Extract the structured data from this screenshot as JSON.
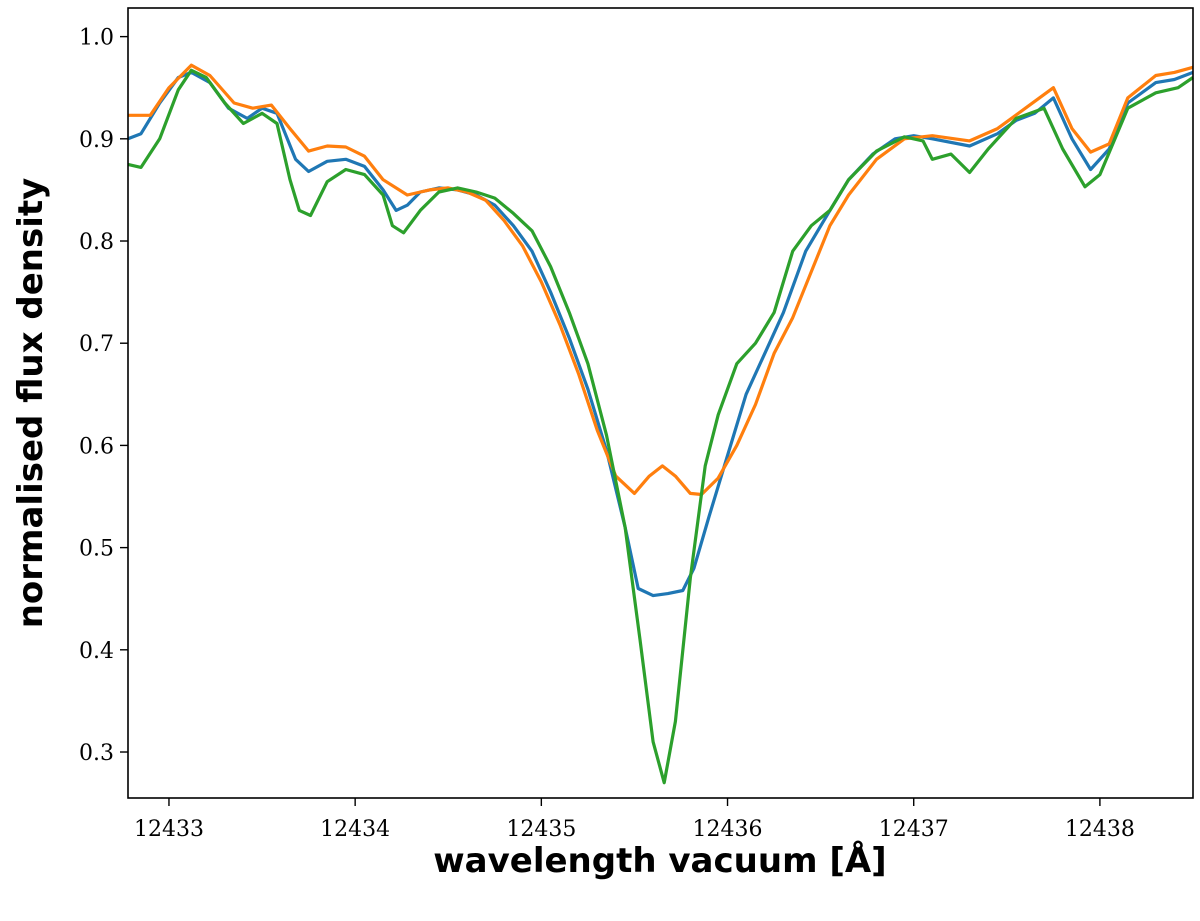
{
  "chart_data": {
    "type": "line",
    "title": "",
    "xlabel": "wavelength vacuum [Å]",
    "ylabel": "normalised flux density",
    "xlim": [
      12432.78,
      12438.5
    ],
    "ylim": [
      0.255,
      1.028
    ],
    "xticks": [
      12433,
      12434,
      12435,
      12436,
      12437,
      12438
    ],
    "yticks": [
      0.3,
      0.4,
      0.5,
      0.6,
      0.7,
      0.8,
      0.9,
      1.0
    ],
    "ytick_labels": [
      "0.3",
      "0.4",
      "0.5",
      "0.6",
      "0.7",
      "0.8",
      "0.9",
      "1.0"
    ],
    "grid": false,
    "legend": "none",
    "series": [
      {
        "color": "#1f77b4",
        "points": [
          [
            12432.78,
            0.9
          ],
          [
            12432.85,
            0.905
          ],
          [
            12432.95,
            0.935
          ],
          [
            12433.05,
            0.96
          ],
          [
            12433.12,
            0.965
          ],
          [
            12433.22,
            0.955
          ],
          [
            12433.32,
            0.93
          ],
          [
            12433.42,
            0.92
          ],
          [
            12433.5,
            0.93
          ],
          [
            12433.58,
            0.925
          ],
          [
            12433.68,
            0.88
          ],
          [
            12433.75,
            0.868
          ],
          [
            12433.85,
            0.878
          ],
          [
            12433.95,
            0.88
          ],
          [
            12434.05,
            0.873
          ],
          [
            12434.15,
            0.85
          ],
          [
            12434.22,
            0.83
          ],
          [
            12434.28,
            0.835
          ],
          [
            12434.35,
            0.848
          ],
          [
            12434.45,
            0.852
          ],
          [
            12434.55,
            0.85
          ],
          [
            12434.65,
            0.845
          ],
          [
            12434.75,
            0.835
          ],
          [
            12434.85,
            0.815
          ],
          [
            12434.95,
            0.79
          ],
          [
            12435.05,
            0.75
          ],
          [
            12435.15,
            0.705
          ],
          [
            12435.25,
            0.655
          ],
          [
            12435.35,
            0.595
          ],
          [
            12435.45,
            0.52
          ],
          [
            12435.52,
            0.46
          ],
          [
            12435.6,
            0.453
          ],
          [
            12435.68,
            0.455
          ],
          [
            12435.76,
            0.458
          ],
          [
            12435.82,
            0.48
          ],
          [
            12435.9,
            0.53
          ],
          [
            12436.0,
            0.59
          ],
          [
            12436.1,
            0.65
          ],
          [
            12436.2,
            0.69
          ],
          [
            12436.3,
            0.73
          ],
          [
            12436.42,
            0.79
          ],
          [
            12436.55,
            0.83
          ],
          [
            12436.65,
            0.86
          ],
          [
            12436.78,
            0.885
          ],
          [
            12436.9,
            0.9
          ],
          [
            12437.0,
            0.903
          ],
          [
            12437.1,
            0.9
          ],
          [
            12437.3,
            0.893
          ],
          [
            12437.45,
            0.905
          ],
          [
            12437.55,
            0.918
          ],
          [
            12437.65,
            0.925
          ],
          [
            12437.75,
            0.94
          ],
          [
            12437.85,
            0.9
          ],
          [
            12437.95,
            0.87
          ],
          [
            12438.05,
            0.89
          ],
          [
            12438.15,
            0.935
          ],
          [
            12438.3,
            0.955
          ],
          [
            12438.4,
            0.958
          ],
          [
            12438.5,
            0.965
          ]
        ]
      },
      {
        "color": "#ff7f0e",
        "points": [
          [
            12432.78,
            0.923
          ],
          [
            12432.9,
            0.923
          ],
          [
            12433.0,
            0.95
          ],
          [
            12433.12,
            0.972
          ],
          [
            12433.22,
            0.962
          ],
          [
            12433.35,
            0.935
          ],
          [
            12433.45,
            0.93
          ],
          [
            12433.55,
            0.933
          ],
          [
            12433.65,
            0.91
          ],
          [
            12433.75,
            0.888
          ],
          [
            12433.85,
            0.893
          ],
          [
            12433.95,
            0.892
          ],
          [
            12434.05,
            0.883
          ],
          [
            12434.15,
            0.86
          ],
          [
            12434.28,
            0.845
          ],
          [
            12434.4,
            0.85
          ],
          [
            12434.5,
            0.852
          ],
          [
            12434.6,
            0.848
          ],
          [
            12434.7,
            0.84
          ],
          [
            12434.8,
            0.82
          ],
          [
            12434.9,
            0.795
          ],
          [
            12435.0,
            0.76
          ],
          [
            12435.1,
            0.718
          ],
          [
            12435.2,
            0.67
          ],
          [
            12435.3,
            0.615
          ],
          [
            12435.4,
            0.57
          ],
          [
            12435.5,
            0.553
          ],
          [
            12435.58,
            0.57
          ],
          [
            12435.65,
            0.58
          ],
          [
            12435.72,
            0.57
          ],
          [
            12435.8,
            0.553
          ],
          [
            12435.86,
            0.552
          ],
          [
            12435.95,
            0.568
          ],
          [
            12436.05,
            0.6
          ],
          [
            12436.15,
            0.64
          ],
          [
            12436.25,
            0.69
          ],
          [
            12436.35,
            0.725
          ],
          [
            12436.45,
            0.77
          ],
          [
            12436.55,
            0.815
          ],
          [
            12436.65,
            0.845
          ],
          [
            12436.8,
            0.88
          ],
          [
            12436.95,
            0.9
          ],
          [
            12437.1,
            0.903
          ],
          [
            12437.3,
            0.898
          ],
          [
            12437.45,
            0.91
          ],
          [
            12437.6,
            0.93
          ],
          [
            12437.75,
            0.95
          ],
          [
            12437.85,
            0.91
          ],
          [
            12437.95,
            0.887
          ],
          [
            12438.05,
            0.895
          ],
          [
            12438.15,
            0.94
          ],
          [
            12438.3,
            0.962
          ],
          [
            12438.4,
            0.965
          ],
          [
            12438.5,
            0.97
          ]
        ]
      },
      {
        "color": "#2ca02c",
        "points": [
          [
            12432.78,
            0.875
          ],
          [
            12432.85,
            0.872
          ],
          [
            12432.95,
            0.9
          ],
          [
            12433.05,
            0.948
          ],
          [
            12433.12,
            0.967
          ],
          [
            12433.2,
            0.96
          ],
          [
            12433.3,
            0.935
          ],
          [
            12433.4,
            0.915
          ],
          [
            12433.5,
            0.925
          ],
          [
            12433.58,
            0.915
          ],
          [
            12433.65,
            0.86
          ],
          [
            12433.7,
            0.83
          ],
          [
            12433.76,
            0.825
          ],
          [
            12433.85,
            0.858
          ],
          [
            12433.95,
            0.87
          ],
          [
            12434.05,
            0.865
          ],
          [
            12434.15,
            0.845
          ],
          [
            12434.2,
            0.815
          ],
          [
            12434.26,
            0.808
          ],
          [
            12434.35,
            0.83
          ],
          [
            12434.45,
            0.848
          ],
          [
            12434.55,
            0.852
          ],
          [
            12434.65,
            0.848
          ],
          [
            12434.75,
            0.842
          ],
          [
            12434.85,
            0.827
          ],
          [
            12434.95,
            0.81
          ],
          [
            12435.05,
            0.775
          ],
          [
            12435.15,
            0.73
          ],
          [
            12435.25,
            0.68
          ],
          [
            12435.35,
            0.61
          ],
          [
            12435.45,
            0.52
          ],
          [
            12435.53,
            0.41
          ],
          [
            12435.6,
            0.31
          ],
          [
            12435.66,
            0.27
          ],
          [
            12435.72,
            0.33
          ],
          [
            12435.8,
            0.47
          ],
          [
            12435.88,
            0.58
          ],
          [
            12435.95,
            0.63
          ],
          [
            12436.05,
            0.68
          ],
          [
            12436.15,
            0.7
          ],
          [
            12436.25,
            0.73
          ],
          [
            12436.35,
            0.79
          ],
          [
            12436.45,
            0.815
          ],
          [
            12436.55,
            0.83
          ],
          [
            12436.65,
            0.86
          ],
          [
            12436.8,
            0.888
          ],
          [
            12436.95,
            0.902
          ],
          [
            12437.05,
            0.898
          ],
          [
            12437.1,
            0.88
          ],
          [
            12437.2,
            0.885
          ],
          [
            12437.3,
            0.867
          ],
          [
            12437.4,
            0.89
          ],
          [
            12437.55,
            0.92
          ],
          [
            12437.7,
            0.93
          ],
          [
            12437.8,
            0.89
          ],
          [
            12437.92,
            0.853
          ],
          [
            12438.0,
            0.865
          ],
          [
            12438.15,
            0.93
          ],
          [
            12438.3,
            0.945
          ],
          [
            12438.42,
            0.95
          ],
          [
            12438.5,
            0.96
          ]
        ]
      }
    ]
  }
}
